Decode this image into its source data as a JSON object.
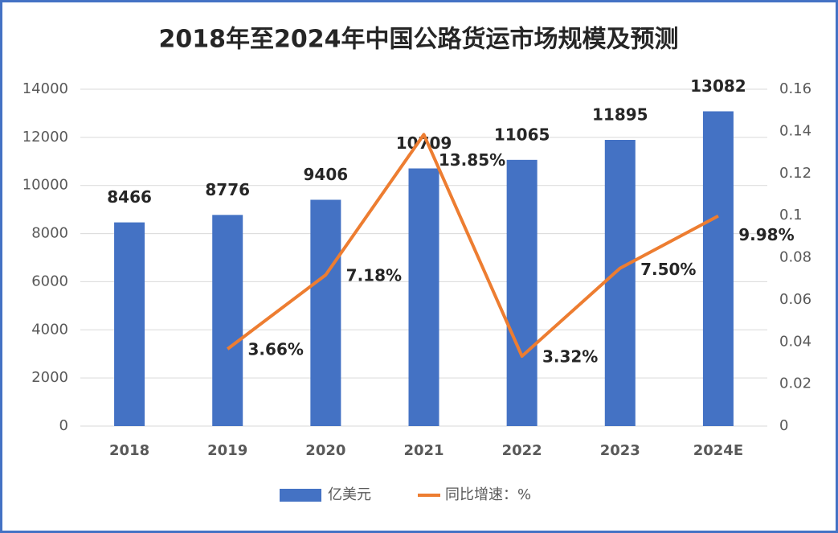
{
  "chart_data": {
    "type": "bar",
    "title": "2018年至2024年中国公路货运市场规模及预测",
    "categories": [
      "2018",
      "2019",
      "2020",
      "2021",
      "2022",
      "2023",
      "2024E"
    ],
    "series": [
      {
        "name": "亿美元",
        "type": "bar",
        "color": "#4472c4",
        "values": [
          8466,
          8776,
          9406,
          10709,
          11065,
          11895,
          13082
        ]
      },
      {
        "name": "同比增速：%",
        "type": "line",
        "axis": "y2",
        "color": "#ed7d31",
        "values": [
          null,
          0.0366,
          0.0718,
          0.1385,
          0.0332,
          0.075,
          0.0998
        ],
        "value_labels": [
          null,
          "3.66%",
          "7.18%",
          "13.85%",
          "3.32%",
          "7.50%",
          "9.98%"
        ]
      }
    ],
    "ylim": [
      0,
      14000
    ],
    "yticks": [
      0,
      2000,
      4000,
      6000,
      8000,
      10000,
      12000,
      14000
    ],
    "y2lim": [
      0,
      0.16
    ],
    "y2ticks": [
      0,
      0.02,
      0.04,
      0.06,
      0.08,
      0.1,
      0.12,
      0.14,
      0.16
    ],
    "grid": true,
    "legend": "bottom"
  }
}
